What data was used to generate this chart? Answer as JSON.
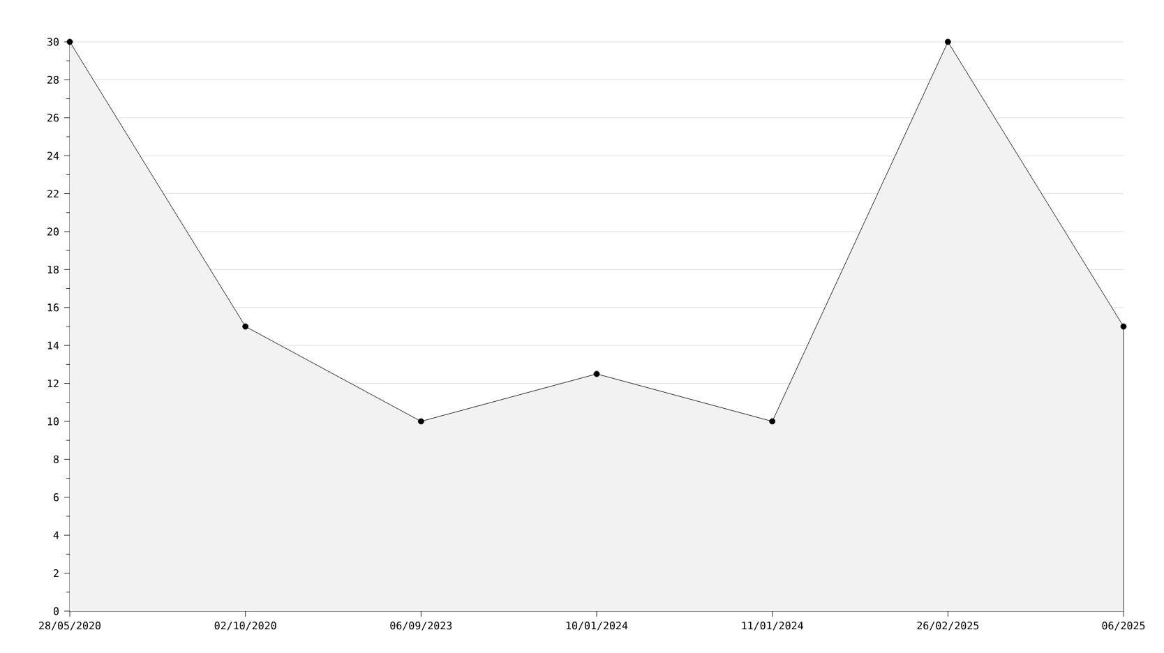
{
  "chart_data": {
    "type": "area",
    "categories": [
      "28/05/2020",
      "02/10/2020",
      "06/09/2023",
      "10/01/2024",
      "11/01/2024",
      "26/02/2025",
      "06/2025"
    ],
    "series": [
      {
        "color": "#000000",
        "values": [
          30,
          15,
          10,
          12.5,
          10,
          30,
          15
        ]
      }
    ],
    "ylim": [
      0,
      30
    ],
    "yticks": [
      0,
      2,
      4,
      6,
      8,
      10,
      12,
      14,
      16,
      18,
      20,
      22,
      24,
      26,
      28,
      30
    ],
    "grid": "y",
    "marker": "circle",
    "line_style": "solid"
  }
}
